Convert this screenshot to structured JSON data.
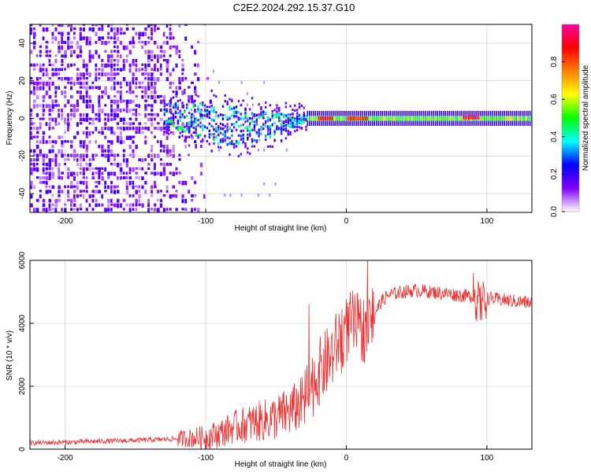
{
  "title": "C2E2.2024.292.15.37.G10",
  "chart_data": [
    {
      "type": "heatmap",
      "xlabel": "Height of straight line (km)",
      "ylabel": "Frequency (Hz)",
      "xlim": [
        -225,
        132
      ],
      "ylim": [
        -50,
        50
      ],
      "xticks": [
        -200,
        -100,
        0,
        100
      ],
      "xtick_labels": [
        "-200",
        "-100",
        "0",
        "100"
      ],
      "yticks": [
        -40,
        -20,
        0,
        20,
        40
      ],
      "ytick_labels": [
        "-40",
        "-20",
        "0",
        "20",
        "40"
      ],
      "colorbar": {
        "label": "Normalized spectral amplitude",
        "range": [
          0.0,
          1.0
        ],
        "ticks": [
          0.0,
          0.2,
          0.4,
          0.6,
          0.8
        ],
        "tick_labels": [
          "0.0",
          "0.2",
          "0.4",
          "0.6",
          "0.8"
        ],
        "colormap": [
          "#ffffff",
          "#8000ff",
          "#0000ff",
          "#00ffff",
          "#00ff00",
          "#ffff00",
          "#ff8000",
          "#ff0000",
          "#ff00a0"
        ]
      },
      "regions": [
        {
          "name": "noise",
          "x_range": [
            -225,
            -95
          ],
          "freq_range": [
            -50,
            50
          ],
          "amplitude": [
            0.05,
            0.2
          ]
        },
        {
          "name": "transition",
          "x_range": [
            -130,
            -28
          ],
          "freq_range": [
            -15,
            8
          ],
          "amplitude": [
            0.2,
            0.5
          ]
        },
        {
          "name": "signal",
          "x_range": [
            -28,
            132
          ],
          "freq_center": 0,
          "freq_halfwidth": 3,
          "amplitude": [
            0.45,
            0.95
          ]
        }
      ],
      "peak_segments": [
        {
          "x": [
            -20,
            -10
          ],
          "freq": 0,
          "amplitude": 0.95
        },
        {
          "x": [
            0,
            15
          ],
          "freq": 0,
          "amplitude": 0.9
        },
        {
          "x": [
            83,
            95
          ],
          "freq": 0.5,
          "amplitude": 0.97
        }
      ],
      "colors": {
        "grid": "#c8c8c8"
      },
      "grid": true
    },
    {
      "type": "line",
      "xlabel": "Height of straight line (km)",
      "ylabel": "SNR (10 * v/v)",
      "xlim": [
        -225,
        132
      ],
      "ylim": [
        0,
        6000
      ],
      "xticks": [
        -200,
        -100,
        0,
        100
      ],
      "xtick_labels": [
        "-200",
        "-100",
        "0",
        "100"
      ],
      "yticks": [
        0,
        2000,
        4000,
        6000
      ],
      "ytick_labels": [
        "0",
        "2000",
        "4000",
        "6000"
      ],
      "grid": true,
      "series": [
        {
          "color": "#ee3030",
          "x": [
            -225,
            -200,
            -175,
            -150,
            -125,
            -100,
            -90,
            -80,
            -70,
            -60,
            -50,
            -40,
            -30,
            -25,
            -20,
            -15,
            -10,
            -5,
            0,
            5,
            10,
            15,
            20,
            25,
            30,
            40,
            50,
            60,
            70,
            80,
            90,
            95,
            100,
            110,
            120,
            132
          ],
          "y": [
            200,
            220,
            250,
            280,
            320,
            380,
            500,
            700,
            800,
            900,
            1000,
            1200,
            1500,
            2000,
            2400,
            2700,
            3000,
            3500,
            3800,
            4000,
            3800,
            3900,
            4300,
            4700,
            4900,
            5000,
            5050,
            5000,
            4950,
            4900,
            4850,
            4600,
            4800,
            4750,
            4700,
            4650
          ]
        }
      ]
    }
  ]
}
